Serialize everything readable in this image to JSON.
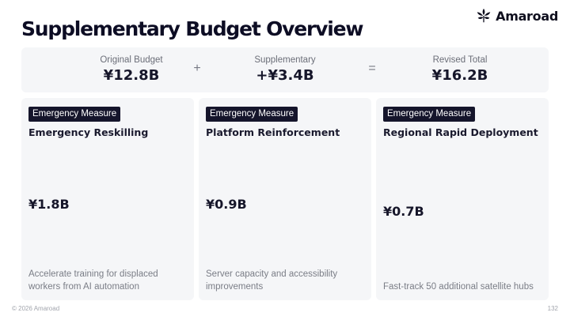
{
  "brand": {
    "name": "Amaroad",
    "icon": "leaf-logo-icon",
    "color": "#0f0f1e"
  },
  "title": "Supplementary Budget Overview",
  "summary": {
    "items": [
      {
        "label": "Original Budget",
        "value": "¥12.8B"
      },
      {
        "label": "Supplementary",
        "value": "+¥3.4B"
      },
      {
        "label": "Revised Total",
        "value": "¥16.2B"
      }
    ],
    "operators": [
      "+",
      "="
    ]
  },
  "cards": [
    {
      "badge": "Emergency Measure",
      "title": "Emergency Reskilling",
      "amount": "¥1.8B",
      "description": "Accelerate training for displaced workers from AI automation"
    },
    {
      "badge": "Emergency Measure",
      "title": "Platform Reinforcement",
      "amount": "¥0.9B",
      "description": "Server capacity and accessibility improvements"
    },
    {
      "badge": "Emergency Measure",
      "title": "Regional Rapid Deployment",
      "amount": "¥0.7B",
      "description": "Fast-track 50 additional satellite hubs"
    }
  ],
  "footer": {
    "copyright": "© 2026 Amaroad",
    "page_number": "132"
  },
  "colors": {
    "badge_bg": "#15152b",
    "card_bg": "#f5f6f8",
    "text_dark": "#16162a",
    "text_muted": "#7a7d86"
  }
}
